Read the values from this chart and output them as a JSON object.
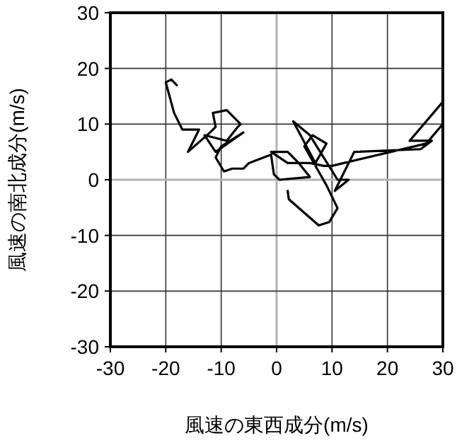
{
  "chart_data": {
    "type": "line",
    "xlabel": "風速の東西成分(m/s)",
    "ylabel": "風速の南北成分(m/s)",
    "x": [
      2,
      2.2,
      7.6,
      9.5,
      11,
      9,
      5,
      6.5,
      9,
      7,
      3,
      6,
      11,
      13,
      10.5,
      14,
      26,
      28,
      24,
      30,
      30,
      27,
      10,
      8.5,
      6,
      2,
      -1,
      2,
      4,
      6,
      0.5,
      -0.5,
      -1,
      -5,
      -6,
      -8,
      -9.5,
      -11,
      -10,
      -6,
      -11,
      -13,
      -9,
      -7,
      -6.5,
      -9,
      -11.5,
      -11,
      -12,
      -16,
      -14,
      -17,
      -18.5,
      -20,
      -19,
      -18
    ],
    "series": [
      {
        "color": "#000000",
        "values": [
          -2,
          -3.5,
          -8.2,
          -7.6,
          -5.1,
          -1,
          6,
          8,
          6.5,
          3,
          10.5,
          8,
          0,
          0,
          -2,
          5,
          5.5,
          7,
          7,
          14,
          10,
          6.5,
          2.5,
          2.5,
          3,
          3,
          5,
          5,
          3,
          0.5,
          0,
          1,
          4.5,
          3,
          2,
          2,
          1.5,
          4,
          6,
          8.5,
          5,
          8,
          7,
          9.5,
          10,
          12.5,
          12,
          9.5,
          8.5,
          5,
          9,
          9,
          12,
          17.5,
          18,
          17
        ]
      }
    ],
    "xlim": [
      -30,
      30
    ],
    "ylim": [
      -30,
      30
    ],
    "xticks": [
      -30,
      -20,
      -10,
      0,
      10,
      20,
      30
    ],
    "yticks": [
      -30,
      -20,
      -10,
      0,
      10,
      20,
      30
    ],
    "grid": true,
    "marker": "none",
    "line_style": "solid"
  }
}
